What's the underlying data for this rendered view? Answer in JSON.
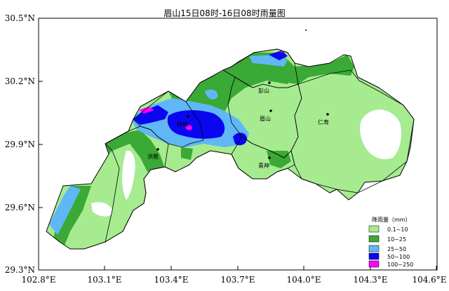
{
  "title": "眉山15日08时-16日08时雨量图",
  "axes": {
    "y_ticks": [
      "30.5°N",
      "30.2°N",
      "29.9°N",
      "29.6°N",
      "29.3°N"
    ],
    "x_ticks": [
      "102.8°E",
      "103.1°E",
      "103.4°E",
      "103.7°E",
      "104.0°E",
      "104.3°E",
      "104.6°E"
    ]
  },
  "cities": [
    {
      "name": "眉山",
      "key": "meishan"
    },
    {
      "name": "仁寿",
      "key": "renshou"
    },
    {
      "name": "青神",
      "key": "qingshen"
    },
    {
      "name": "洪雅",
      "key": "hongya"
    },
    {
      "name": "丹棱",
      "key": "danling"
    },
    {
      "name": "彭山",
      "key": "pengshan"
    }
  ],
  "legend": {
    "title": "降雨量（mm）",
    "items": [
      {
        "label": "0.1~10",
        "color": "#a6eb8f"
      },
      {
        "label": "10~25",
        "color": "#3aa935"
      },
      {
        "label": "25~50",
        "color": "#5fb8f5"
      },
      {
        "label": "50~100",
        "color": "#0a06f0"
      },
      {
        "label": "100~250",
        "color": "#ff00ff"
      }
    ]
  },
  "colors": {
    "light_green": "#a6eb8f",
    "green": "#3aa935",
    "sky_blue": "#5fb8f5",
    "blue": "#0a06f0",
    "magenta": "#ff00ff",
    "outside": "#ffffff",
    "frame": "#000000"
  }
}
